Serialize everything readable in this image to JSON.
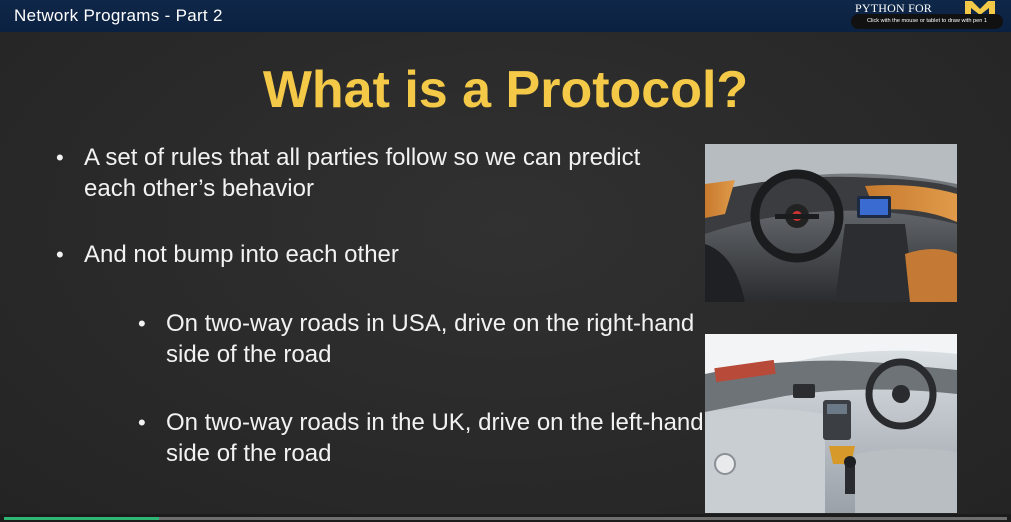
{
  "video": {
    "title": "Network Programs - Part 2",
    "progress": 0.155
  },
  "brand": {
    "text": "PYTHON FOR",
    "tooltip": "Click with the mouse or tablet to draw with pen 1",
    "logo_color": "#f4c948"
  },
  "slide": {
    "heading": "What is a Protocol?",
    "bullets": [
      {
        "text": "A set of rules that all parties follow so we can predict each other’s behavior"
      },
      {
        "text": "And not bump into each other"
      },
      {
        "text": "On two-way roads in USA, drive on the right-hand side of the road"
      },
      {
        "text": "On two-way roads in the UK, drive on the left-hand side of the road"
      }
    ],
    "bullet_symbol": "•",
    "heading_color": "#f4c948"
  }
}
